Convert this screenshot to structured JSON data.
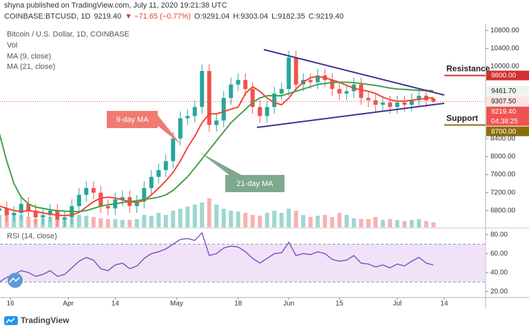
{
  "header": {
    "publisher": "shyna published on TradingView.com, July 11, 2020 19:21:38 UTC",
    "symbol": "COINBASE:BTCUSD, 1D",
    "last": "9219.40",
    "change": "▼ −71.65 (−0.77%)",
    "open": "O:9291.04",
    "high": "H:9303.04",
    "low": "L:9182.35",
    "close": "C:9219.40"
  },
  "chart_data": {
    "type": "candlestick",
    "title": "Bitcoin / U.S. Dollar, 1D, COINBASE",
    "x": [
      0,
      2,
      4,
      6,
      8,
      10,
      12,
      14,
      16,
      18,
      20,
      22,
      24,
      26,
      28,
      30,
      32,
      34,
      36,
      38,
      40,
      42,
      44,
      46,
      48,
      50,
      52,
      54,
      56,
      58,
      60,
      62,
      64,
      66,
      68,
      70,
      72,
      74,
      76,
      78,
      80,
      82,
      84,
      86,
      88,
      90,
      92,
      94,
      96,
      98,
      100,
      102,
      104,
      106,
      108,
      110,
      112,
      114,
      116,
      118,
      120
    ],
    "open": [
      6800,
      6850,
      6700,
      6750,
      6950,
      6800,
      6650,
      6700,
      6800,
      6600,
      6650,
      6900,
      7150,
      7300,
      7200,
      6900,
      6850,
      7050,
      7100,
      6900,
      7000,
      7300,
      7550,
      7700,
      7900,
      8400,
      8850,
      8900,
      9100,
      9900,
      8700,
      8800,
      9300,
      9600,
      9700,
      9500,
      9100,
      8900,
      9100,
      9400,
      9500,
      10200,
      9600,
      9700,
      9650,
      9800,
      9700,
      9500,
      9400,
      9450,
      9600,
      9300,
      9250,
      9150,
      9200,
      9100,
      9200,
      9150,
      9250,
      9350,
      9291.04
    ],
    "high": [
      7000,
      7000,
      6900,
      7100,
      7100,
      6950,
      6850,
      6950,
      6950,
      6800,
      7050,
      7300,
      7450,
      7450,
      7350,
      7050,
      7200,
      7250,
      7250,
      7150,
      7450,
      7700,
      7850,
      8050,
      8550,
      9000,
      9050,
      9250,
      10050,
      10050,
      8950,
      9450,
      9750,
      9850,
      9850,
      9650,
      9250,
      9250,
      9550,
      9650,
      10350,
      10350,
      9850,
      9850,
      9950,
      9950,
      9850,
      9650,
      9600,
      9750,
      9750,
      9450,
      9400,
      9350,
      9350,
      9350,
      9350,
      9400,
      9500,
      9500,
      9303.04
    ],
    "low": [
      6650,
      6550,
      6550,
      6600,
      6650,
      6500,
      6500,
      6550,
      6450,
      6450,
      6500,
      6750,
      7000,
      7050,
      6750,
      6700,
      6700,
      6900,
      6750,
      6750,
      6850,
      7150,
      7400,
      7550,
      7750,
      8250,
      8700,
      8750,
      8950,
      8550,
      8550,
      8650,
      9150,
      9450,
      9350,
      8950,
      8750,
      8750,
      8950,
      9250,
      9350,
      9450,
      9450,
      9500,
      9500,
      9550,
      9350,
      9250,
      9250,
      9300,
      9150,
      9100,
      9000,
      9000,
      8950,
      8950,
      9000,
      9000,
      9100,
      9100,
      9182.35
    ],
    "close": [
      6850,
      6700,
      6750,
      6950,
      6800,
      6650,
      6700,
      6800,
      6600,
      6650,
      6900,
      7150,
      7300,
      7200,
      6900,
      6850,
      7050,
      7100,
      6900,
      7000,
      7300,
      7550,
      7700,
      7900,
      8400,
      8850,
      8900,
      9100,
      9900,
      8700,
      8800,
      9300,
      9600,
      9700,
      9500,
      9100,
      8900,
      9100,
      9400,
      9500,
      10200,
      9600,
      9700,
      9650,
      9800,
      9700,
      9500,
      9400,
      9450,
      9600,
      9300,
      9250,
      9150,
      9200,
      9100,
      9200,
      9150,
      9250,
      9350,
      9250,
      9219.4
    ],
    "up_color": "#26a69a",
    "down_color": "#ef5350",
    "xlim": [
      0.14,
      134.43
    ],
    "xticks": [
      {
        "value": 3,
        "label": "16"
      },
      {
        "value": 19,
        "label": "Apr"
      },
      {
        "value": 32,
        "label": "14"
      },
      {
        "value": 49,
        "label": "May"
      },
      {
        "value": 66,
        "label": "18"
      },
      {
        "value": 80,
        "label": "Jun"
      },
      {
        "value": 94,
        "label": "15"
      },
      {
        "value": 110,
        "label": "Jul"
      },
      {
        "value": 123,
        "label": "14"
      }
    ],
    "ylim": [
      6430,
      10940
    ],
    "yticks": [
      {
        "value": 6800,
        "label": "6800.00"
      },
      {
        "value": 7200,
        "label": "7200.00"
      },
      {
        "value": 7600,
        "label": "7600.00"
      },
      {
        "value": 8000,
        "label": "8000.00"
      },
      {
        "value": 8400,
        "label": "8400.00"
      },
      {
        "value": 10000,
        "label": "10000.00"
      },
      {
        "value": 10400,
        "label": "10400.00"
      },
      {
        "value": 10800,
        "label": "10800.00"
      }
    ],
    "series": [
      {
        "name": "MA (9, close)",
        "color": "#f44336",
        "values": [
          6900,
          6850,
          6800,
          6780,
          6800,
          6780,
          6750,
          6720,
          6700,
          6690,
          6700,
          6760,
          6880,
          7000,
          7080,
          7100,
          7080,
          7040,
          7000,
          6980,
          7030,
          7150,
          7300,
          7460,
          7650,
          7900,
          8200,
          8450,
          8750,
          8950,
          8950,
          9000,
          9050,
          9100,
          9400,
          9550,
          9450,
          9300,
          9200,
          9150,
          9300,
          9500,
          9650,
          9750,
          9780,
          9750,
          9700,
          9650,
          9580,
          9520,
          9480,
          9450,
          9400,
          9320,
          9260,
          9230,
          9230,
          9250,
          9270,
          9290,
          9307.5
        ]
      },
      {
        "name": "MA (21, close)",
        "color": "#43a047",
        "values": [
          8500,
          7900,
          7400,
          7100,
          6950,
          6880,
          6850,
          6820,
          6800,
          6790,
          6780,
          6780,
          6800,
          6850,
          6900,
          6930,
          6950,
          6980,
          7000,
          7020,
          7050,
          7070,
          7100,
          7150,
          7250,
          7400,
          7550,
          7750,
          7950,
          8150,
          8350,
          8550,
          8750,
          8900,
          9050,
          9200,
          9300,
          9350,
          9350,
          9350,
          9400,
          9450,
          9500,
          9550,
          9600,
          9620,
          9640,
          9650,
          9650,
          9640,
          9620,
          9600,
          9580,
          9550,
          9520,
          9500,
          9490,
          9480,
          9470,
          9465,
          9461.7
        ]
      }
    ],
    "price_tags": [
      {
        "value": 9461.7,
        "label": "9461.70",
        "color": "#eef5ee",
        "text_color": "#222"
      },
      {
        "value": 9307.5,
        "label": "9307.50",
        "color": "#fbe3e3",
        "text_color": "#222"
      },
      {
        "value": 9219.4,
        "label": "9219.40",
        "countdown": "04:38:25",
        "color": "#ef5350",
        "text_color": "#ffffff"
      }
    ],
    "levels": [
      {
        "name": "Resistance",
        "value": 9800,
        "label": "9800.00",
        "color": "#d32f2f"
      },
      {
        "name": "Support",
        "value": 8700,
        "label": "8700.00",
        "color": "#8a6d0b"
      }
    ],
    "annotations": [
      "9-day MA",
      "21-day MA"
    ],
    "volume": {
      "name": "Vol",
      "ylim": [
        0,
        100
      ],
      "values": [
        30,
        45,
        35,
        30,
        25,
        20,
        22,
        25,
        20,
        18,
        22,
        30,
        28,
        25,
        22,
        20,
        20,
        18,
        18,
        20,
        30,
        28,
        35,
        30,
        40,
        45,
        50,
        55,
        60,
        70,
        55,
        45,
        40,
        38,
        35,
        30,
        28,
        35,
        40,
        35,
        45,
        40,
        30,
        25,
        28,
        30,
        25,
        35,
        30,
        22,
        20,
        20,
        25,
        18,
        20,
        18,
        15,
        18,
        20,
        15,
        12
      ]
    },
    "rsi": {
      "name": "RSI (14, close)",
      "color": "#7e57c2",
      "ylim": [
        15,
        86.4
      ],
      "bands": [
        30,
        70
      ],
      "yticks": [
        {
          "value": 20,
          "label": "20.00"
        },
        {
          "value": 40,
          "label": "40.00"
        },
        {
          "value": 60,
          "label": "60.00"
        },
        {
          "value": 80,
          "label": "80.00"
        }
      ],
      "values": [
        30,
        35,
        38,
        42,
        40,
        36,
        38,
        42,
        36,
        38,
        45,
        52,
        56,
        53,
        44,
        42,
        48,
        50,
        44,
        47,
        55,
        60,
        62,
        65,
        70,
        75,
        76,
        74,
        82,
        58,
        60,
        66,
        68,
        67,
        62,
        55,
        50,
        55,
        60,
        61,
        72,
        58,
        60,
        59,
        62,
        60,
        54,
        52,
        53,
        58,
        50,
        49,
        46,
        48,
        45,
        49,
        47,
        52,
        56,
        50,
        48
      ]
    }
  },
  "footer": {
    "brand": "TradingView"
  }
}
